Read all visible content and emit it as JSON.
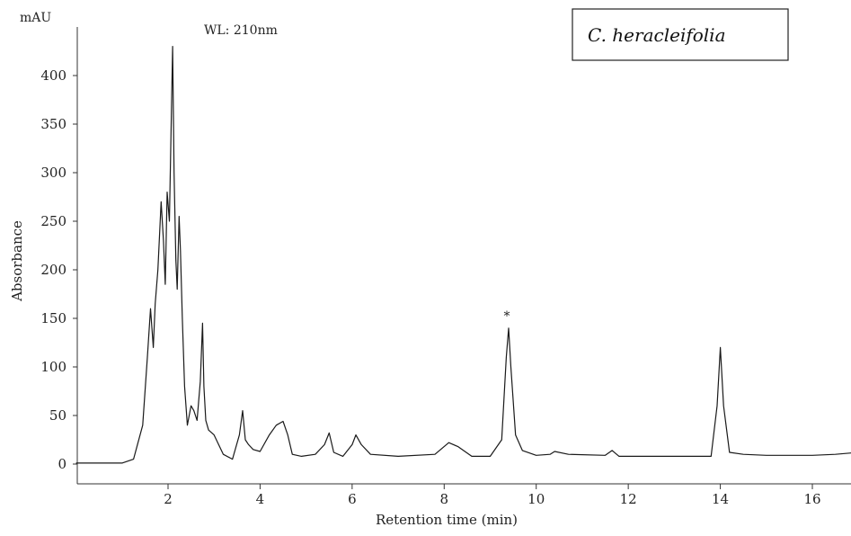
{
  "chart_data": {
    "type": "line",
    "title": "",
    "ylabel": "Absorbance",
    "y_unit": "mAU",
    "xlabel": "Retention time (min)",
    "annotation": "WL: 210nm",
    "species_label": "C. heracleifolia",
    "peak_marker": {
      "text": "*",
      "x": 9.4,
      "y": 150
    },
    "xlim": [
      0,
      17
    ],
    "ylim": [
      -20,
      440
    ],
    "x_ticks": [
      2,
      4,
      6,
      8,
      10,
      12,
      14,
      16
    ],
    "y_ticks": [
      0,
      50,
      100,
      150,
      200,
      250,
      300,
      350,
      400
    ],
    "grid": false,
    "line_color": "#1a1a1a",
    "series": [
      {
        "x": [
          0.0,
          1.0,
          1.25,
          1.45,
          1.55,
          1.62,
          1.68,
          1.72,
          1.78,
          1.85,
          1.9,
          1.94,
          1.98,
          2.03,
          2.08,
          2.1,
          2.13,
          2.17,
          2.2,
          2.24,
          2.27,
          2.31,
          2.36,
          2.42,
          2.5,
          2.56,
          2.63,
          2.7,
          2.75,
          2.78,
          2.82,
          2.88,
          3.0,
          3.2,
          3.4,
          3.55,
          3.62,
          3.68,
          3.75,
          3.85,
          4.0,
          4.2,
          4.35,
          4.5,
          4.6,
          4.7,
          4.9,
          5.2,
          5.4,
          5.5,
          5.6,
          5.8,
          6.0,
          6.08,
          6.2,
          6.4,
          7.0,
          7.8,
          8.1,
          8.3,
          8.6,
          9.0,
          9.25,
          9.35,
          9.4,
          9.45,
          9.55,
          9.7,
          10.0,
          10.3,
          10.4,
          10.7,
          11.5,
          11.65,
          11.8,
          13.0,
          13.8,
          13.93,
          14.0,
          14.07,
          14.2,
          14.5,
          15.0,
          16.0,
          16.5,
          17.0
        ],
        "y": [
          1,
          1,
          5,
          40,
          110,
          160,
          120,
          165,
          200,
          270,
          230,
          185,
          280,
          250,
          380,
          430,
          300,
          210,
          180,
          255,
          220,
          150,
          80,
          40,
          60,
          55,
          45,
          85,
          145,
          80,
          45,
          35,
          30,
          10,
          5,
          30,
          55,
          25,
          20,
          15,
          13,
          30,
          40,
          44,
          30,
          10,
          8,
          10,
          20,
          32,
          12,
          8,
          20,
          30,
          20,
          10,
          8,
          10,
          22,
          18,
          8,
          8,
          25,
          110,
          140,
          100,
          30,
          14,
          9,
          10,
          13,
          10,
          9,
          14,
          8,
          8,
          8,
          60,
          120,
          60,
          12,
          10,
          9,
          9,
          10,
          12
        ]
      }
    ]
  }
}
